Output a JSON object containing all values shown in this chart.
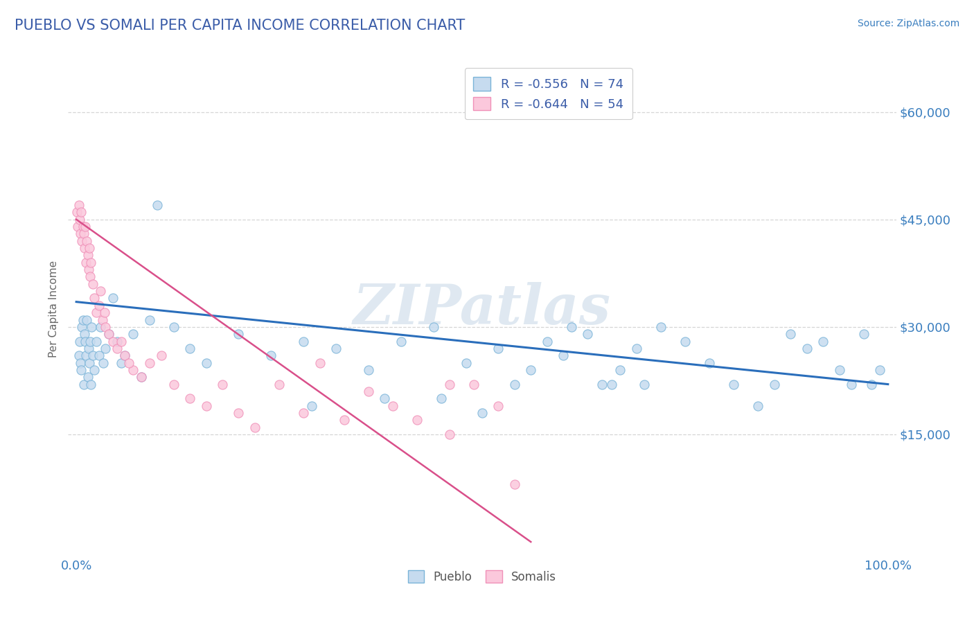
{
  "title": "PUEBLO VS SOMALI PER CAPITA INCOME CORRELATION CHART",
  "source_text": "Source: ZipAtlas.com",
  "ylabel": "Per Capita Income",
  "xlim": [
    -0.01,
    1.01
  ],
  "ylim": [
    -2000,
    67000
  ],
  "yticks": [
    15000,
    30000,
    45000,
    60000
  ],
  "ytick_labels": [
    "$15,000",
    "$30,000",
    "$45,000",
    "$60,000"
  ],
  "xtick_vals": [
    0.0,
    1.0
  ],
  "xtick_labels": [
    "0.0%",
    "100.0%"
  ],
  "blue_edge": "#7ab4d8",
  "blue_fill": "#c6dbef",
  "pink_edge": "#f090b8",
  "pink_fill": "#fbc8dc",
  "line_blue": "#2a6ebb",
  "line_pink": "#d94f8a",
  "watermark": "ZIPatlas",
  "legend_label1": "R = -0.556   N = 74",
  "legend_label2": "R = -0.644   N = 54",
  "title_color": "#3a5ca8",
  "axis_label_color": "#3a7ebf",
  "tick_color": "#3a7ebf",
  "grid_color": "#bbbbbb",
  "background_color": "#ffffff",
  "blue_line_x": [
    0.0,
    1.0
  ],
  "blue_line_y": [
    33500,
    22000
  ],
  "pink_line_x": [
    0.0,
    0.56
  ],
  "pink_line_y": [
    45000,
    0
  ],
  "pueblo_x": [
    0.003,
    0.004,
    0.005,
    0.006,
    0.007,
    0.008,
    0.009,
    0.01,
    0.011,
    0.012,
    0.013,
    0.014,
    0.015,
    0.016,
    0.017,
    0.018,
    0.019,
    0.02,
    0.022,
    0.025,
    0.028,
    0.03,
    0.033,
    0.036,
    0.04,
    0.045,
    0.05,
    0.055,
    0.06,
    0.07,
    0.08,
    0.09,
    0.1,
    0.12,
    0.14,
    0.16,
    0.2,
    0.24,
    0.28,
    0.32,
    0.36,
    0.4,
    0.44,
    0.48,
    0.52,
    0.56,
    0.6,
    0.63,
    0.66,
    0.69,
    0.72,
    0.75,
    0.78,
    0.81,
    0.84,
    0.86,
    0.88,
    0.9,
    0.92,
    0.94,
    0.955,
    0.97,
    0.98,
    0.99,
    0.38,
    0.29,
    0.45,
    0.5,
    0.54,
    0.58,
    0.61,
    0.648,
    0.67,
    0.7
  ],
  "pueblo_y": [
    26000,
    28000,
    25000,
    24000,
    30000,
    31000,
    22000,
    29000,
    28000,
    26000,
    31000,
    23000,
    27000,
    25000,
    28000,
    22000,
    30000,
    26000,
    24000,
    28000,
    26000,
    30000,
    25000,
    27000,
    29000,
    34000,
    28000,
    25000,
    26000,
    29000,
    23000,
    31000,
    47000,
    30000,
    27000,
    25000,
    29000,
    26000,
    28000,
    27000,
    24000,
    28000,
    30000,
    25000,
    27000,
    24000,
    26000,
    29000,
    22000,
    27000,
    30000,
    28000,
    25000,
    22000,
    19000,
    22000,
    29000,
    27000,
    28000,
    24000,
    22000,
    29000,
    22000,
    24000,
    20000,
    19000,
    20000,
    18000,
    22000,
    28000,
    30000,
    22000,
    24000,
    22000
  ],
  "somali_x": [
    0.001,
    0.002,
    0.003,
    0.004,
    0.005,
    0.006,
    0.007,
    0.008,
    0.009,
    0.01,
    0.011,
    0.012,
    0.013,
    0.014,
    0.015,
    0.016,
    0.017,
    0.018,
    0.02,
    0.022,
    0.025,
    0.028,
    0.032,
    0.036,
    0.04,
    0.045,
    0.05,
    0.06,
    0.07,
    0.08,
    0.09,
    0.105,
    0.12,
    0.14,
    0.16,
    0.18,
    0.2,
    0.22,
    0.25,
    0.28,
    0.3,
    0.33,
    0.36,
    0.39,
    0.42,
    0.46,
    0.49,
    0.52,
    0.54,
    0.46,
    0.03,
    0.035,
    0.055,
    0.065
  ],
  "somali_y": [
    46000,
    44000,
    47000,
    45000,
    43000,
    46000,
    42000,
    44000,
    43000,
    41000,
    44000,
    39000,
    42000,
    40000,
    38000,
    41000,
    37000,
    39000,
    36000,
    34000,
    32000,
    33000,
    31000,
    30000,
    29000,
    28000,
    27000,
    26000,
    24000,
    23000,
    25000,
    26000,
    22000,
    20000,
    19000,
    22000,
    18000,
    16000,
    22000,
    18000,
    25000,
    17000,
    21000,
    19000,
    17000,
    15000,
    22000,
    19000,
    8000,
    22000,
    35000,
    32000,
    28000,
    25000
  ]
}
